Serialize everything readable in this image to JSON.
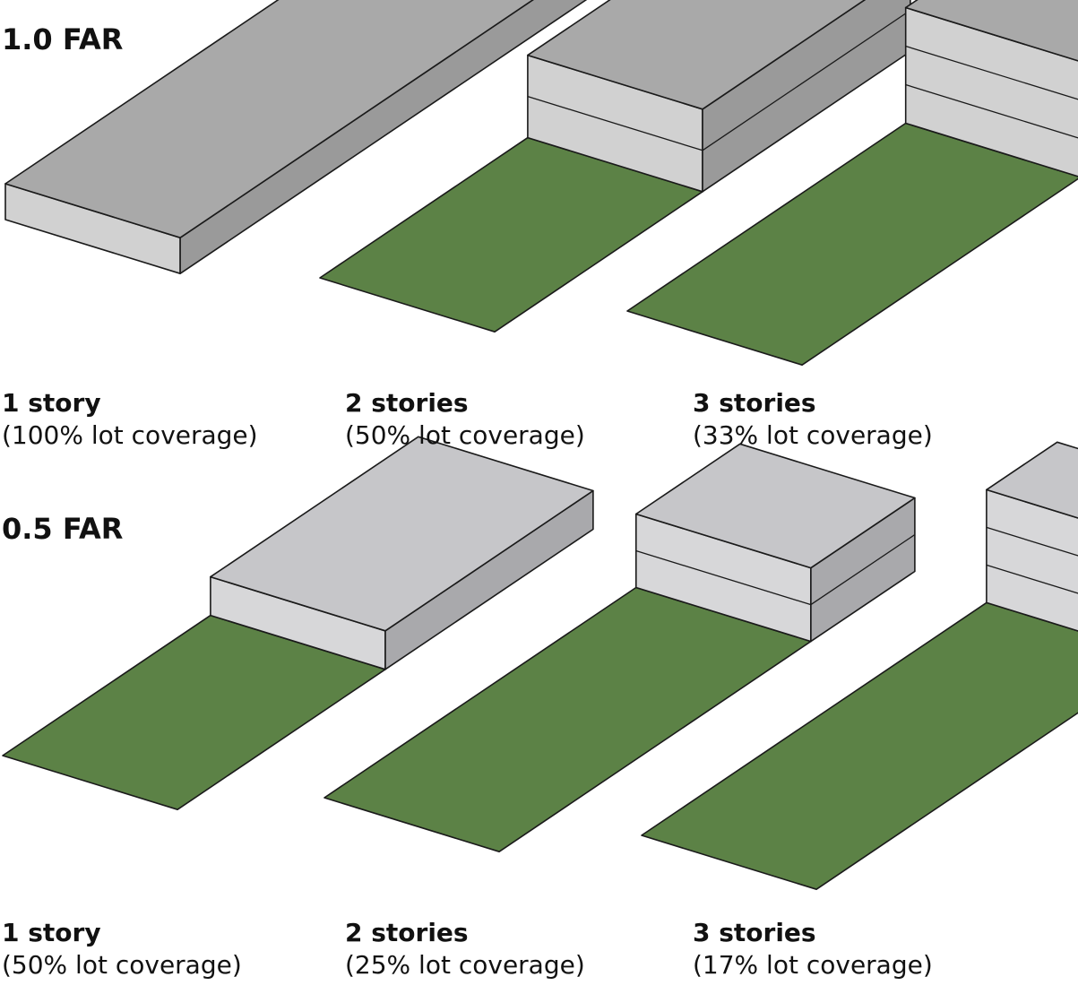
{
  "colors": {
    "lawn": "#5c8246",
    "outline": "#1a1a1a",
    "roof_1": "#a9a9a9",
    "front_1": "#d1d1d1",
    "side_1": "#9a9a9a",
    "roof_2": "#c6c6c9",
    "front_2": "#d7d7d9",
    "side_2": "#a9a9ac"
  },
  "rows": [
    {
      "heading": "1.0 FAR",
      "far": 1.0,
      "lots": [
        {
          "stories": 1,
          "label": "1 story",
          "coverage_pct": 100,
          "coverage_label": "(100% lot coverage)"
        },
        {
          "stories": 2,
          "label": "2 stories",
          "coverage_pct": 50,
          "coverage_label": "(50% lot coverage)"
        },
        {
          "stories": 3,
          "label": "3 stories",
          "coverage_pct": 33,
          "coverage_label": "(33% lot coverage)"
        }
      ]
    },
    {
      "heading": "0.5 FAR",
      "far": 0.5,
      "lots": [
        {
          "stories": 1,
          "label": "1 story",
          "coverage_pct": 50,
          "coverage_label": "(50% lot coverage)"
        },
        {
          "stories": 2,
          "label": "2 stories",
          "coverage_pct": 25,
          "coverage_label": "(25% lot coverage)"
        },
        {
          "stories": 3,
          "label": "3 stories",
          "coverage_pct": 17,
          "coverage_label": "(17% lot coverage)"
        }
      ]
    }
  ]
}
